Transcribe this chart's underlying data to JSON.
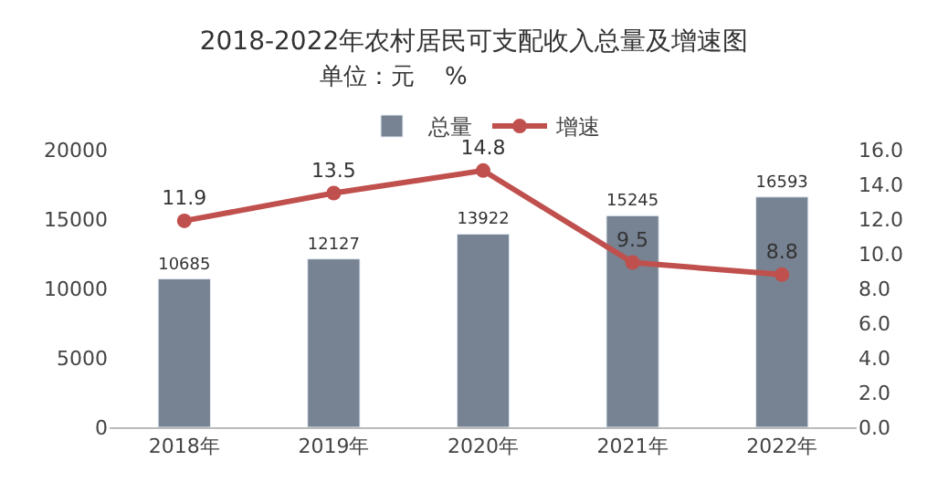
{
  "chart_data": {
    "type": "bar",
    "title": "2018-2022年农村居民可支配收入总量及增速图",
    "subtitle": "单位：元    %",
    "categories": [
      "2018年",
      "2019年",
      "2020年",
      "2021年",
      "2022年"
    ],
    "series": [
      {
        "name": "总量",
        "color": "#778392",
        "values": [
          10685,
          12127,
          13922,
          15245,
          16593
        ]
      },
      {
        "name": "增速",
        "type": "line",
        "axis": "y2",
        "color": "#c0504d",
        "values": [
          11.9,
          13.5,
          14.8,
          9.5,
          8.8
        ]
      }
    ],
    "ylim": [
      0,
      20000
    ],
    "yticks": [
      0,
      5000,
      10000,
      15000,
      20000
    ],
    "y2lim": [
      0,
      16
    ],
    "y2ticks": [
      {
        "value": 0,
        "label": "0.0"
      },
      {
        "value": 2,
        "label": "2.0"
      },
      {
        "value": 4,
        "label": "4.0"
      },
      {
        "value": 6,
        "label": "6.0"
      },
      {
        "value": 8,
        "label": "8.0"
      },
      {
        "value": 10,
        "label": "10.0"
      },
      {
        "value": 12,
        "label": "12.0"
      },
      {
        "value": 14,
        "label": "14.0"
      },
      {
        "value": 16,
        "label": "16.0"
      }
    ],
    "data_labels": true,
    "legend": "top",
    "marker": "circle",
    "line_style": "solid"
  }
}
